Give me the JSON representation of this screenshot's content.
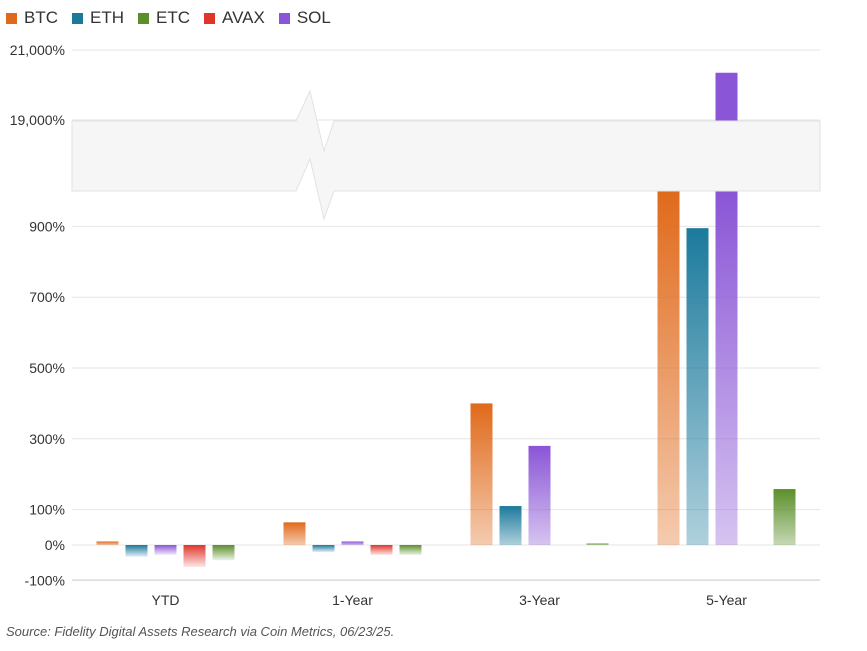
{
  "chart_data": {
    "type": "bar",
    "categories": [
      "YTD",
      "1-Year",
      "3-Year",
      "5-Year"
    ],
    "series": [
      {
        "name": "BTC",
        "color": "#e06a1b",
        "values": [
          10,
          64,
          400,
          1000
        ]
      },
      {
        "name": "ETH",
        "color": "#1b7a9c",
        "values": [
          -33,
          -20,
          110,
          895
        ]
      },
      {
        "name": "SOL",
        "color": "#8a55d6",
        "values": [
          -28,
          10,
          280,
          20350
        ]
      },
      {
        "name": "AVAX",
        "color": "#e0352b",
        "values": [
          -62,
          -28,
          null,
          null
        ]
      },
      {
        "name": "ETC",
        "color": "#5b8f2a",
        "values": [
          -43,
          -28,
          3,
          158
        ]
      }
    ],
    "legend_order": [
      "BTC",
      "ETH",
      "ETC",
      "AVAX",
      "SOL"
    ],
    "y_ticks": [
      "-100%",
      "0%",
      "100%",
      "300%",
      "500%",
      "700%",
      "900%",
      "19,000%",
      "21,000%"
    ],
    "y_lower_range": [
      -100,
      1000
    ],
    "y_upper_range": [
      19000,
      21000
    ],
    "axis_break": true,
    "legend_position": "top-left",
    "grid": true
  },
  "source": "Source: Fidelity Digital Assets Research via Coin Metrics, 06/23/25."
}
